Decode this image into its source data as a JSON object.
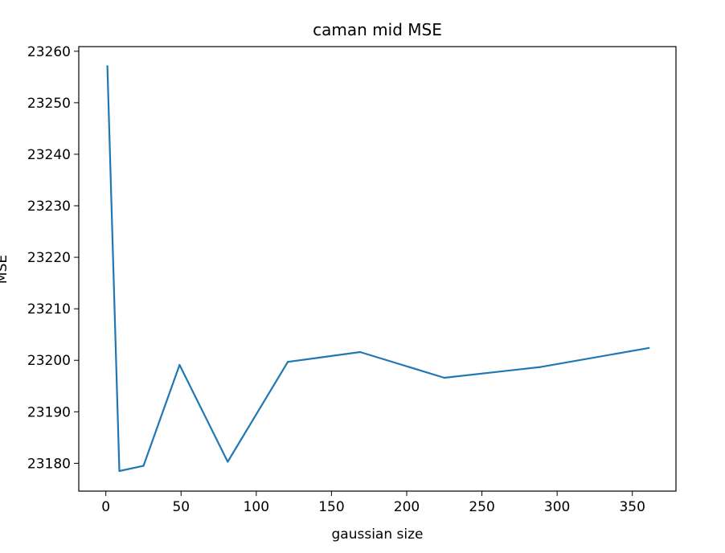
{
  "chart_data": {
    "type": "line",
    "title": "caman mid MSE",
    "xlabel": "gaussian size",
    "ylabel": "MSE",
    "xlim": [
      -18,
      379
    ],
    "ylim": [
      23174.6,
      23260.9
    ],
    "xticks": [
      0,
      50,
      100,
      150,
      200,
      250,
      300,
      350
    ],
    "yticks": [
      23180,
      23190,
      23200,
      23210,
      23220,
      23230,
      23240,
      23250,
      23260
    ],
    "grid": false,
    "series": [
      {
        "color": "#1f77b4",
        "x": [
          1,
          9,
          25,
          49,
          81,
          121,
          169,
          225,
          289,
          361
        ],
        "y": [
          23257.1,
          23178.5,
          23179.5,
          23199.1,
          23180.3,
          23199.7,
          23201.6,
          23196.6,
          23198.7,
          23202.4
        ]
      }
    ]
  }
}
